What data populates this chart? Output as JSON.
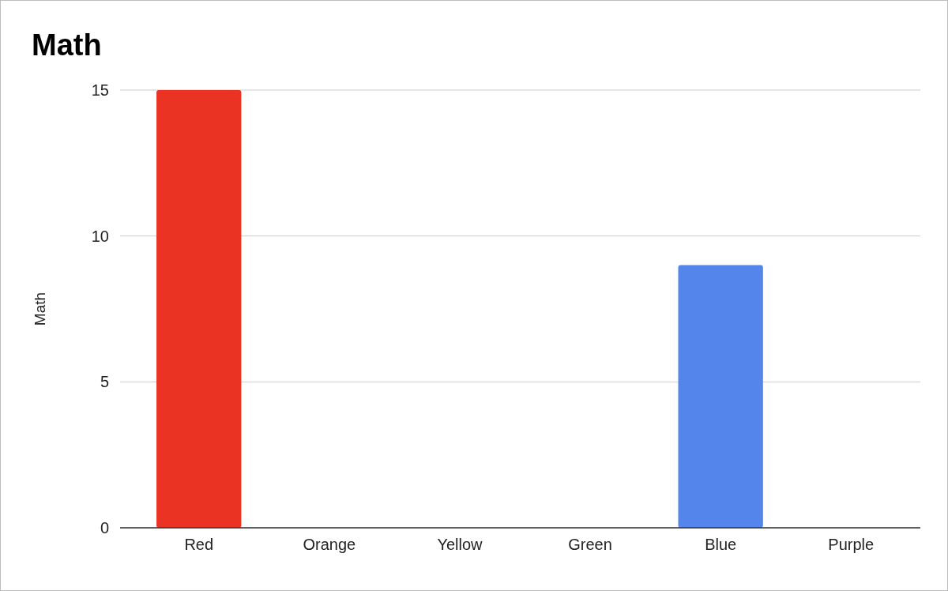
{
  "chart_data": {
    "type": "bar",
    "title": "Math",
    "ylabel": "Math",
    "categories": [
      "Red",
      "Orange",
      "Yellow",
      "Green",
      "Blue",
      "Purple"
    ],
    "values": [
      15,
      0,
      0,
      0,
      9,
      0
    ],
    "colors": [
      "#ea3323",
      "#f29b38",
      "#fbd74a",
      "#5db154",
      "#5485eb",
      "#8e44ad"
    ],
    "ylim": [
      0,
      15
    ],
    "yticks": [
      0,
      5,
      10,
      15
    ],
    "grid": "y"
  }
}
